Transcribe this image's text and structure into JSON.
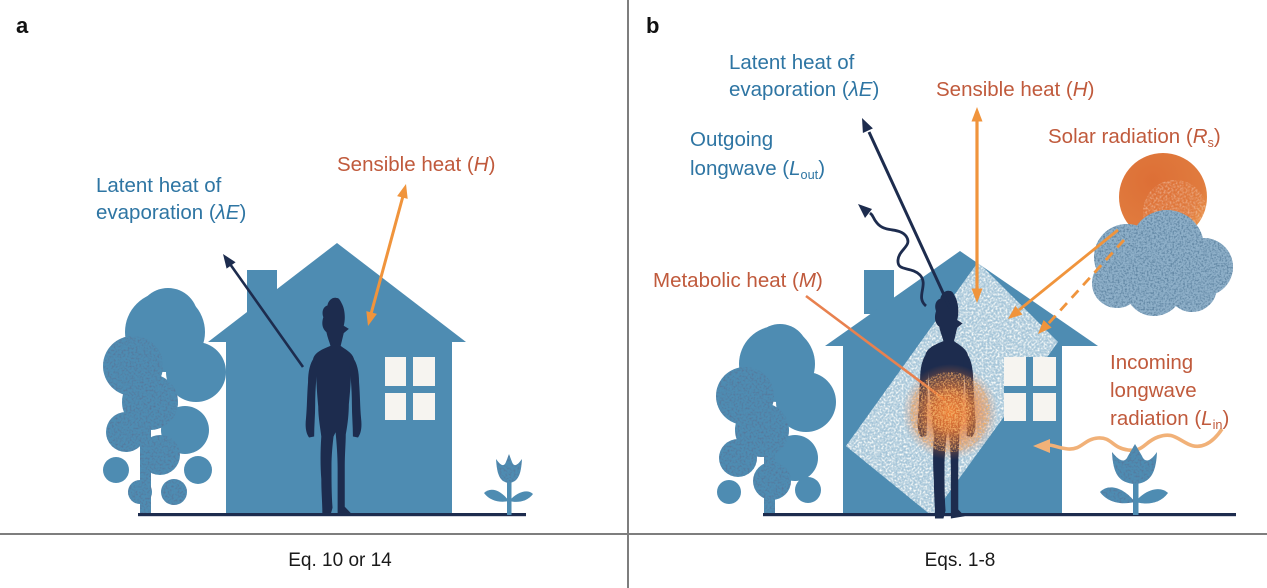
{
  "figure": {
    "type": "two-panel energy balance diagram",
    "panels": [
      {
        "id": "a",
        "letter": "a",
        "caption": "Eq. 10 or 14"
      },
      {
        "id": "b",
        "letter": "b",
        "caption": "Eqs. 1-8"
      }
    ]
  },
  "colors": {
    "blue_text": "#2e75a3",
    "red_text": "#c05a3c",
    "arrow_orange": "#f0943c",
    "light_orange": "#f1b178",
    "navy": "#1d2c4e",
    "house_blue": "#4e8cb2",
    "cloud_blue": "#8fb0c9",
    "sun_orange": "#e0763d",
    "window_white": "#f6f4f0",
    "metabolic_line": "#e8814f",
    "divider_gray": "#7e7e7e",
    "caption_black": "#1a1a1a"
  },
  "panel_a": {
    "letter": "a",
    "caption": "Eq. 10 or 14",
    "labels": {
      "latent": {
        "lines": [
          [
            {
              "t": "Latent heat of"
            }
          ],
          [
            {
              "t": "evaporation ("
            },
            {
              "t": "λE",
              "i": 1
            },
            {
              "t": ")"
            }
          ]
        ]
      },
      "sensible": [
        {
          "t": "Sensible heat ("
        },
        {
          "t": "H",
          "i": 1
        },
        {
          "t": ")"
        }
      ]
    }
  },
  "panel_b": {
    "letter": "b",
    "caption": "Eqs. 1-8",
    "labels": {
      "latent": {
        "lines": [
          [
            {
              "t": "Latent heat of"
            }
          ],
          [
            {
              "t": "evaporation ("
            },
            {
              "t": "λE",
              "i": 1
            },
            {
              "t": ")"
            }
          ]
        ]
      },
      "outgoing": {
        "lines": [
          [
            {
              "t": "Outgoing"
            }
          ],
          [
            {
              "t": "longwave ("
            },
            {
              "t": "L",
              "i": 1
            },
            {
              "t": "out",
              "s": 1
            },
            {
              "t": ")"
            }
          ]
        ]
      },
      "sensible": [
        {
          "t": "Sensible heat ("
        },
        {
          "t": "H",
          "i": 1
        },
        {
          "t": ")"
        }
      ],
      "solar": [
        {
          "t": "Solar radiation ("
        },
        {
          "t": "R",
          "i": 1
        },
        {
          "t": "s",
          "s": 1
        },
        {
          "t": ")"
        }
      ],
      "metabolic": [
        {
          "t": "Metabolic heat ("
        },
        {
          "t": "M",
          "i": 1
        },
        {
          "t": ")"
        }
      ],
      "incoming": {
        "lines": [
          [
            {
              "t": "Incoming"
            }
          ],
          [
            {
              "t": "longwave"
            }
          ],
          [
            {
              "t": "radiation ("
            },
            {
              "t": "L",
              "i": 1
            },
            {
              "t": "in",
              "s": 1
            },
            {
              "t": ")"
            }
          ]
        ]
      }
    }
  },
  "icons": {
    "sun": "sun-icon",
    "cloud": "cloud-icon",
    "house": "house-icon",
    "person": "person-icon",
    "tree": "tree-icon",
    "flower": "flower-icon"
  }
}
